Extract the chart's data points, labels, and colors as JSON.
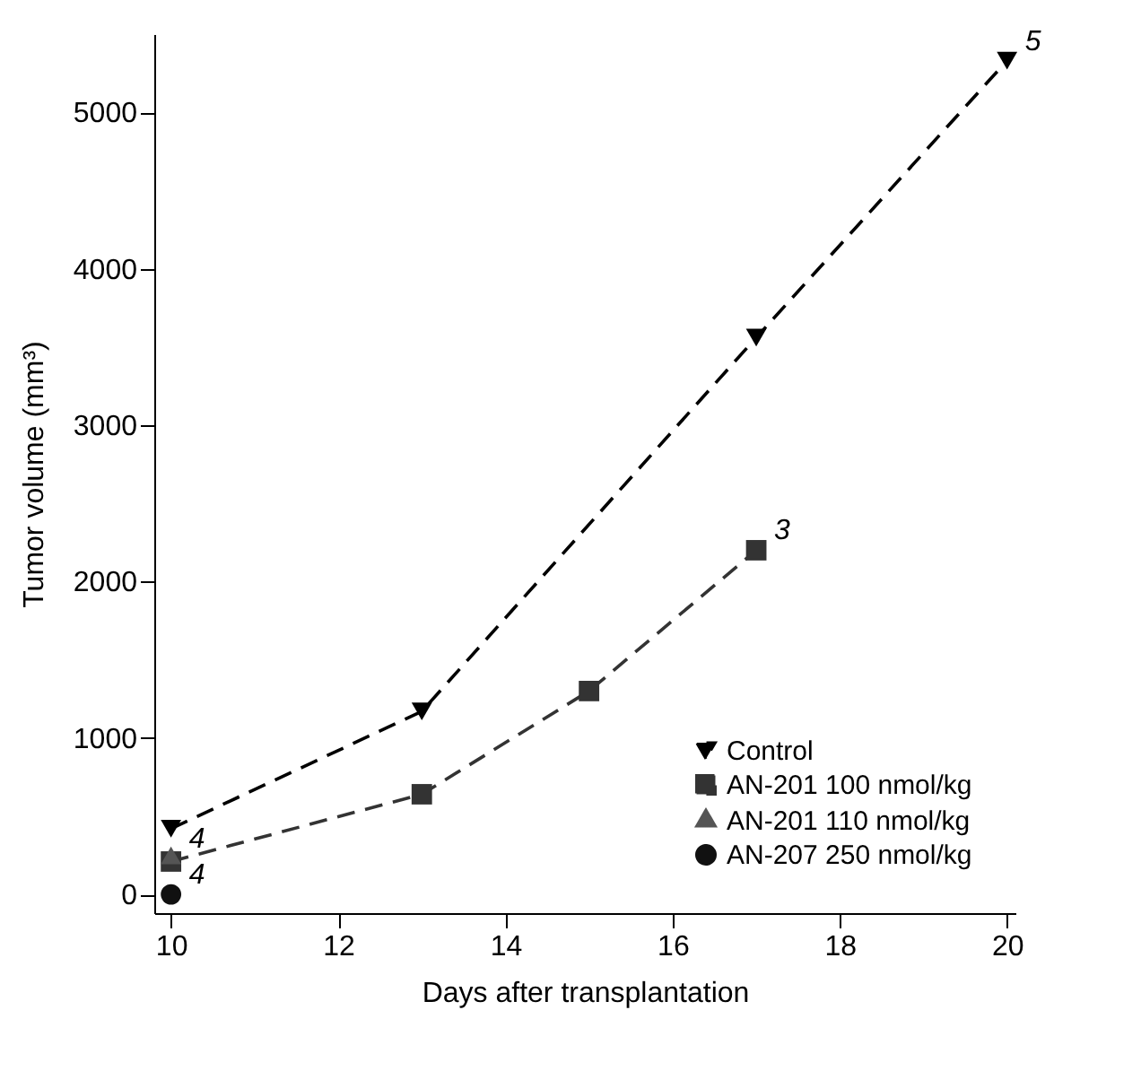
{
  "chart_data": {
    "type": "line",
    "xlabel": "Days after transplantation",
    "ylabel": "Tumor volume (mm³)",
    "xlim": [
      9.8,
      20.1
    ],
    "xticks": [
      10,
      12,
      14,
      16,
      18,
      20
    ],
    "ylim": [
      -120,
      5500
    ],
    "yticks": [
      0,
      1000,
      2000,
      3000,
      4000,
      5000
    ],
    "grid": false,
    "legend": "bottom right",
    "series": [
      {
        "name": "Control",
        "color": "#000000",
        "marker": "triangle-down",
        "line_style": "dashed",
        "x": [
          10,
          13,
          17,
          20
        ],
        "values": [
          420,
          1170,
          3560,
          5330
        ]
      },
      {
        "name": "AN-201 100 nmol/kg",
        "color": "#333333",
        "marker": "square",
        "line_style": "dashed",
        "x": [
          10,
          13,
          15,
          17
        ],
        "values": [
          210,
          640,
          1300,
          2200
        ]
      },
      {
        "name": "AN-201 110 nmol/kg",
        "color": "#555555",
        "marker": "triangle",
        "line_style": "solid",
        "x": [
          10
        ],
        "values": [
          230
        ]
      },
      {
        "name": "AN-207 250 nmol/kg",
        "color": "#111111",
        "marker": "circle",
        "line_style": "solid",
        "x": [
          10
        ],
        "values": [
          0
        ]
      }
    ],
    "annotations": [
      {
        "text": "5",
        "x": 20,
        "y": 5330
      },
      {
        "text": "3",
        "x": 17,
        "y": 2200
      },
      {
        "text": "4",
        "x": 10,
        "y": 230
      },
      {
        "text": "4",
        "x": 10,
        "y": 0
      }
    ]
  }
}
